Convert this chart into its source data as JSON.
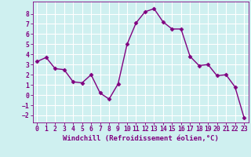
{
  "x": [
    0,
    1,
    2,
    3,
    4,
    5,
    6,
    7,
    8,
    9,
    10,
    11,
    12,
    13,
    14,
    15,
    16,
    17,
    18,
    19,
    20,
    21,
    22,
    23
  ],
  "y": [
    3.3,
    3.7,
    2.6,
    2.5,
    1.3,
    1.2,
    2.0,
    0.2,
    -0.4,
    1.1,
    5.0,
    7.1,
    8.2,
    8.5,
    7.2,
    6.5,
    6.5,
    3.8,
    2.9,
    3.0,
    1.9,
    2.0,
    0.8,
    -2.2
  ],
  "line_color": "#800080",
  "marker": "D",
  "markersize": 2.5,
  "linewidth": 1.0,
  "xlabel": "Windchill (Refroidissement éolien,°C)",
  "xlabel_fontsize": 6.5,
  "xlim": [
    -0.5,
    23.5
  ],
  "ylim": [
    -2.7,
    9.2
  ],
  "yticks": [
    -2,
    -1,
    0,
    1,
    2,
    3,
    4,
    5,
    6,
    7,
    8
  ],
  "xticks": [
    0,
    1,
    2,
    3,
    4,
    5,
    6,
    7,
    8,
    9,
    10,
    11,
    12,
    13,
    14,
    15,
    16,
    17,
    18,
    19,
    20,
    21,
    22,
    23
  ],
  "background_color": "#cff0f0",
  "grid_color": "#ffffff",
  "tick_color": "#800080",
  "tick_fontsize": 5.8,
  "xlabel_color": "#800080"
}
